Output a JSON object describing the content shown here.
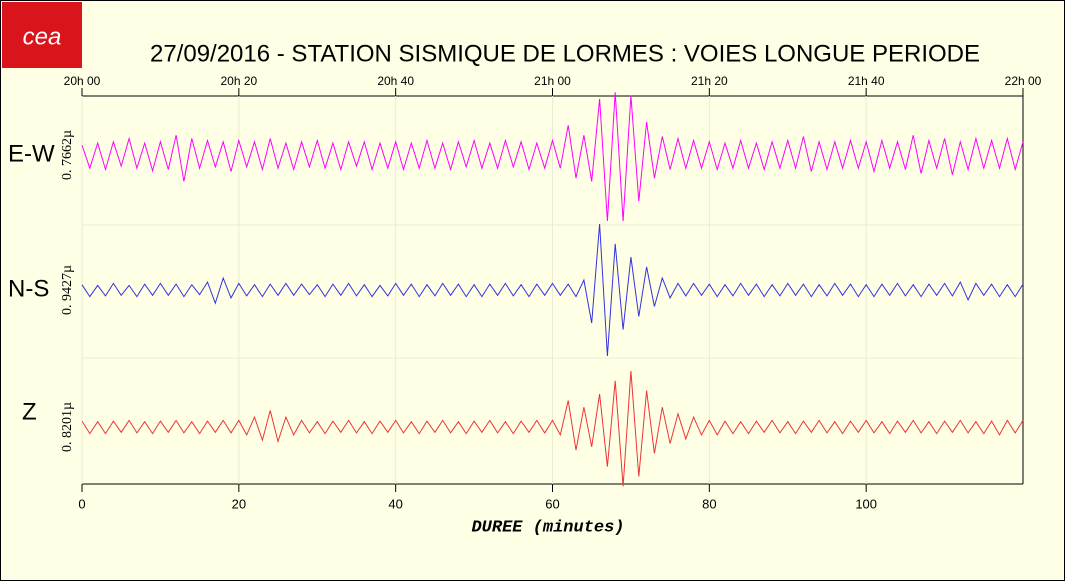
{
  "chart_data": {
    "type": "line",
    "logo": "cea",
    "title": "27/09/2016  -  STATION SISMIQUE DE LORMES : VOIES LONGUE PERIODE",
    "xlabel": "DUREE (minutes)",
    "xlim": [
      0,
      120
    ],
    "xticks": [
      0,
      20,
      40,
      60,
      80,
      100
    ],
    "top_xticks": [
      {
        "value": 0,
        "label": "20h 00"
      },
      {
        "value": 20,
        "label": "20h 20"
      },
      {
        "value": 40,
        "label": "20h 40"
      },
      {
        "value": 60,
        "label": "21h 00"
      },
      {
        "value": 80,
        "label": "21h 20"
      },
      {
        "value": 100,
        "label": "21h 40"
      },
      {
        "value": 120,
        "label": "22h 00"
      }
    ],
    "ylim": [
      -1,
      1
    ],
    "grid": true,
    "x": [
      0,
      1,
      2,
      3,
      4,
      5,
      6,
      7,
      8,
      9,
      10,
      11,
      12,
      13,
      14,
      15,
      16,
      17,
      18,
      19,
      20,
      21,
      22,
      23,
      24,
      25,
      26,
      27,
      28,
      29,
      30,
      31,
      32,
      33,
      34,
      35,
      36,
      37,
      38,
      39,
      40,
      41,
      42,
      43,
      44,
      45,
      46,
      47,
      48,
      49,
      50,
      51,
      52,
      53,
      54,
      55,
      56,
      57,
      58,
      59,
      60,
      61,
      62,
      63,
      64,
      65,
      66,
      67,
      68,
      69,
      70,
      71,
      72,
      73,
      74,
      75,
      76,
      77,
      78,
      79,
      80,
      81,
      82,
      83,
      84,
      85,
      86,
      87,
      88,
      89,
      90,
      91,
      92,
      93,
      94,
      95,
      96,
      97,
      98,
      99,
      100,
      101,
      102,
      103,
      104,
      105,
      106,
      107,
      108,
      109,
      110,
      111,
      112,
      113,
      114,
      115,
      116,
      117,
      118,
      119,
      120
    ],
    "series": [
      {
        "name": "E-W",
        "scale_label": "0. 7662µ",
        "color": "#ff00ff",
        "values": [
          0.15,
          -0.2,
          0.18,
          -0.22,
          0.2,
          -0.17,
          0.25,
          -0.2,
          0.18,
          -0.24,
          0.2,
          -0.22,
          0.3,
          -0.4,
          0.25,
          -0.2,
          0.22,
          -0.18,
          0.2,
          -0.25,
          0.22,
          -0.18,
          0.2,
          -0.22,
          0.25,
          -0.2,
          0.18,
          -0.22,
          0.2,
          -0.18,
          0.22,
          -0.2,
          0.18,
          -0.22,
          0.2,
          -0.17,
          0.2,
          -0.22,
          0.18,
          -0.2,
          0.2,
          -0.22,
          0.18,
          -0.2,
          0.22,
          -0.2,
          0.18,
          -0.22,
          0.2,
          -0.18,
          0.22,
          -0.2,
          0.18,
          -0.2,
          0.22,
          -0.18,
          0.2,
          -0.22,
          0.18,
          -0.2,
          0.22,
          -0.2,
          0.45,
          -0.35,
          0.3,
          -0.4,
          0.85,
          -1.0,
          0.95,
          -1.0,
          0.9,
          -0.7,
          0.5,
          -0.35,
          0.28,
          -0.22,
          0.25,
          -0.2,
          0.22,
          -0.2,
          0.2,
          -0.22,
          0.18,
          -0.2,
          0.22,
          -0.2,
          0.18,
          -0.22,
          0.2,
          -0.2,
          0.22,
          -0.2,
          0.28,
          -0.25,
          0.2,
          -0.22,
          0.2,
          -0.2,
          0.22,
          -0.2,
          0.2,
          -0.25,
          0.22,
          -0.2,
          0.2,
          -0.22,
          0.3,
          -0.28,
          0.22,
          -0.2,
          0.25,
          -0.3,
          0.2,
          -0.22,
          0.25,
          -0.2,
          0.22,
          -0.2,
          0.25,
          -0.22,
          0.2
        ]
      },
      {
        "name": "N-S",
        "scale_label": "0. 9427µ",
        "color": "#3333dd",
        "values": [
          0.08,
          -0.1,
          0.07,
          -0.09,
          0.1,
          -0.08,
          0.07,
          -0.1,
          0.09,
          -0.08,
          0.1,
          -0.08,
          0.09,
          -0.1,
          0.08,
          -0.07,
          0.12,
          -0.2,
          0.18,
          -0.12,
          0.1,
          -0.09,
          0.08,
          -0.1,
          0.09,
          -0.08,
          0.1,
          -0.08,
          0.09,
          -0.07,
          0.08,
          -0.1,
          0.09,
          -0.08,
          0.1,
          -0.09,
          0.08,
          -0.1,
          0.07,
          -0.09,
          0.1,
          -0.08,
          0.09,
          -0.1,
          0.08,
          -0.09,
          0.1,
          -0.08,
          0.09,
          -0.1,
          0.08,
          -0.1,
          0.09,
          -0.08,
          0.1,
          -0.09,
          0.08,
          -0.1,
          0.09,
          -0.08,
          0.1,
          -0.08,
          0.09,
          -0.1,
          0.15,
          -0.5,
          1.0,
          -1.0,
          0.7,
          -0.6,
          0.5,
          -0.4,
          0.35,
          -0.25,
          0.18,
          -0.12,
          0.1,
          -0.09,
          0.1,
          -0.08,
          0.09,
          -0.1,
          0.08,
          -0.09,
          0.1,
          -0.08,
          0.09,
          -0.1,
          0.08,
          -0.09,
          0.1,
          -0.08,
          0.09,
          -0.1,
          0.08,
          -0.09,
          0.1,
          -0.08,
          0.09,
          -0.1,
          0.08,
          -0.1,
          0.09,
          -0.08,
          0.1,
          -0.09,
          0.08,
          -0.1,
          0.09,
          -0.08,
          0.1,
          -0.09,
          0.12,
          -0.15,
          0.1,
          -0.08,
          0.09,
          -0.1,
          0.08,
          -0.1,
          0.09
        ]
      },
      {
        "name": "Z",
        "scale_label": "0. 8201µ",
        "color": "#ee3333",
        "values": [
          0.09,
          -0.1,
          0.08,
          -0.1,
          0.09,
          -0.08,
          0.1,
          -0.09,
          0.08,
          -0.1,
          0.09,
          -0.08,
          0.1,
          -0.09,
          0.08,
          -0.1,
          0.09,
          -0.08,
          0.1,
          -0.09,
          0.1,
          -0.12,
          0.15,
          -0.2,
          0.25,
          -0.22,
          0.15,
          -0.12,
          0.1,
          -0.09,
          0.08,
          -0.1,
          0.09,
          -0.08,
          0.1,
          -0.09,
          0.08,
          -0.1,
          0.09,
          -0.08,
          0.1,
          -0.09,
          0.08,
          -0.1,
          0.09,
          -0.08,
          0.1,
          -0.09,
          0.08,
          -0.1,
          0.09,
          -0.08,
          0.1,
          -0.09,
          0.08,
          -0.1,
          0.09,
          -0.08,
          0.1,
          -0.09,
          0.1,
          -0.12,
          0.4,
          -0.35,
          0.3,
          -0.3,
          0.5,
          -0.6,
          0.7,
          -0.9,
          0.85,
          -0.75,
          0.55,
          -0.4,
          0.3,
          -0.25,
          0.2,
          -0.18,
          0.15,
          -0.12,
          0.1,
          -0.12,
          0.09,
          -0.1,
          0.08,
          -0.1,
          0.09,
          -0.08,
          0.1,
          -0.09,
          0.08,
          -0.1,
          0.09,
          -0.08,
          0.1,
          -0.09,
          0.08,
          -0.1,
          0.09,
          -0.08,
          0.1,
          -0.09,
          0.08,
          -0.1,
          0.09,
          -0.08,
          0.1,
          -0.09,
          0.08,
          -0.1,
          0.09,
          -0.08,
          0.1,
          -0.09,
          0.08,
          -0.1,
          0.09,
          -0.12,
          0.1,
          -0.09,
          0.1
        ]
      }
    ]
  }
}
